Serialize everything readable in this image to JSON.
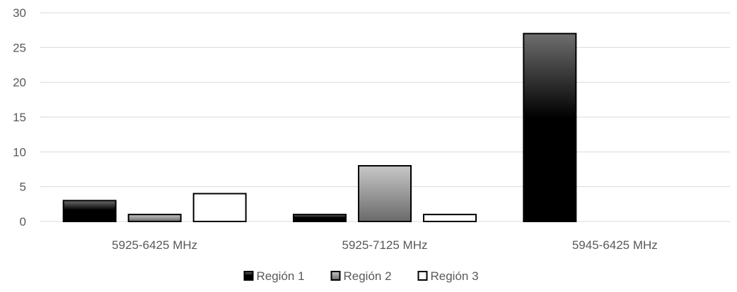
{
  "chart_data": {
    "type": "bar",
    "title": "",
    "xlabel": "",
    "ylabel": "",
    "categories": [
      "5925-6425 MHz",
      "5925-7125 MHz",
      "5945-6425 MHz"
    ],
    "series": [
      {
        "name": "Región 1",
        "values": [
          3,
          1,
          27
        ],
        "fill": "black-gradient"
      },
      {
        "name": "Región 2",
        "values": [
          1,
          8,
          0
        ],
        "fill": "gray-gradient"
      },
      {
        "name": "Región 3",
        "values": [
          4,
          1,
          0
        ],
        "fill": "white"
      }
    ],
    "ylim": [
      0,
      30
    ],
    "yticks": [
      0,
      5,
      10,
      15,
      20,
      25,
      30
    ],
    "grid": true,
    "legend_position": "bottom",
    "colors": {
      "grid": "#d9d9d9",
      "axis_text": "#595959",
      "bar_stroke": "#000000"
    }
  }
}
